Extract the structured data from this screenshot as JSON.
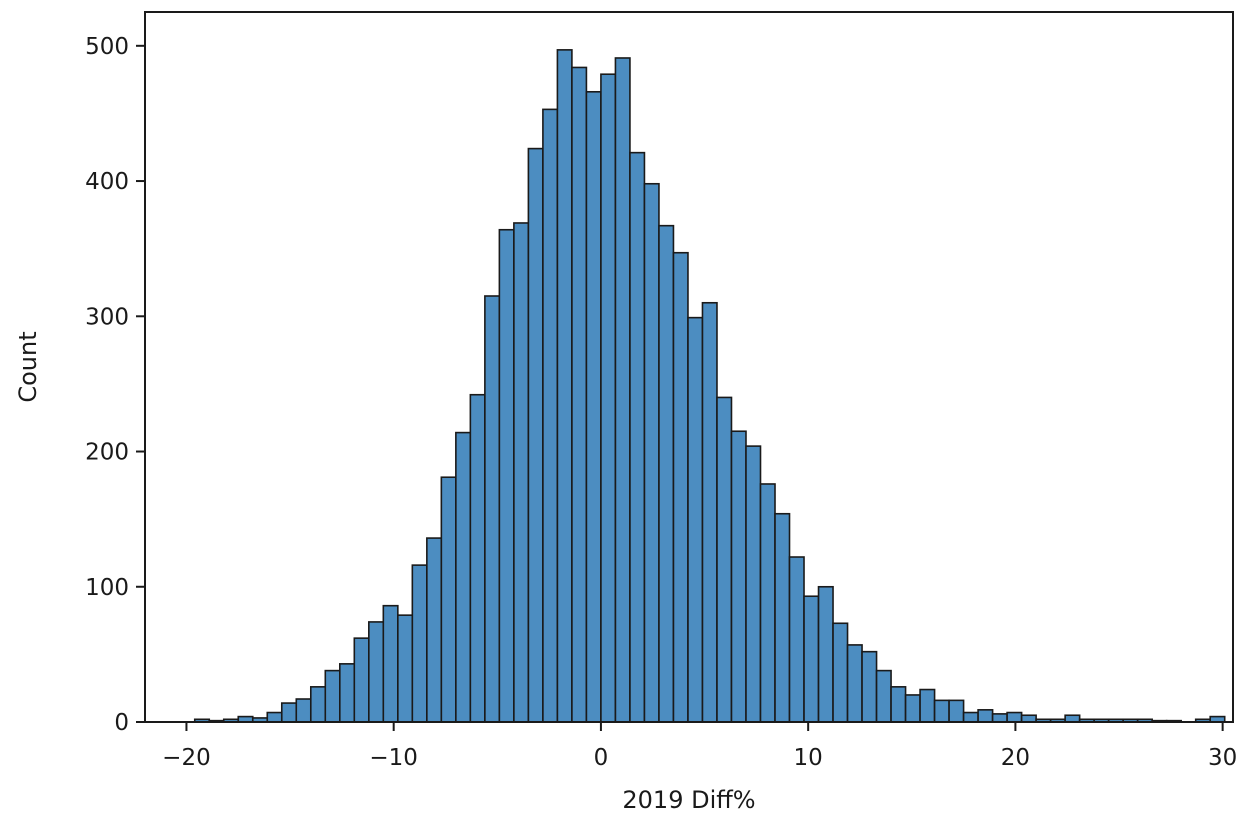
{
  "chart_data": {
    "type": "bar",
    "subtype": "histogram",
    "title": "",
    "xlabel": "2019 Diff%",
    "ylabel": "Count",
    "xlim": [
      -22,
      30.5
    ],
    "ylim": [
      0,
      525
    ],
    "xticks": [
      -20,
      -10,
      0,
      10,
      20,
      30
    ],
    "xtick_labels": [
      "−20",
      "−10",
      "0",
      "10",
      "20",
      "30"
    ],
    "yticks": [
      0,
      100,
      200,
      300,
      400,
      500
    ],
    "ytick_labels": [
      "0",
      "100",
      "200",
      "300",
      "400",
      "500"
    ],
    "grid": false,
    "legend": "none",
    "bar_color": "#4c8dc1",
    "edge_color": "#1a1a1a",
    "bin_start": -19.6,
    "bin_width": 0.7,
    "counts": [
      2,
      1,
      2,
      4,
      3,
      7,
      14,
      17,
      26,
      38,
      43,
      62,
      74,
      86,
      79,
      116,
      136,
      181,
      214,
      242,
      315,
      364,
      369,
      424,
      453,
      497,
      484,
      466,
      479,
      491,
      421,
      398,
      367,
      347,
      299,
      310,
      240,
      215,
      204,
      176,
      154,
      122,
      93,
      100,
      73,
      57,
      52,
      38,
      26,
      20,
      24,
      16,
      16,
      7,
      9,
      6,
      7,
      5,
      2,
      2,
      5,
      2,
      2,
      2,
      2,
      2,
      1,
      1,
      0,
      2,
      4
    ]
  }
}
